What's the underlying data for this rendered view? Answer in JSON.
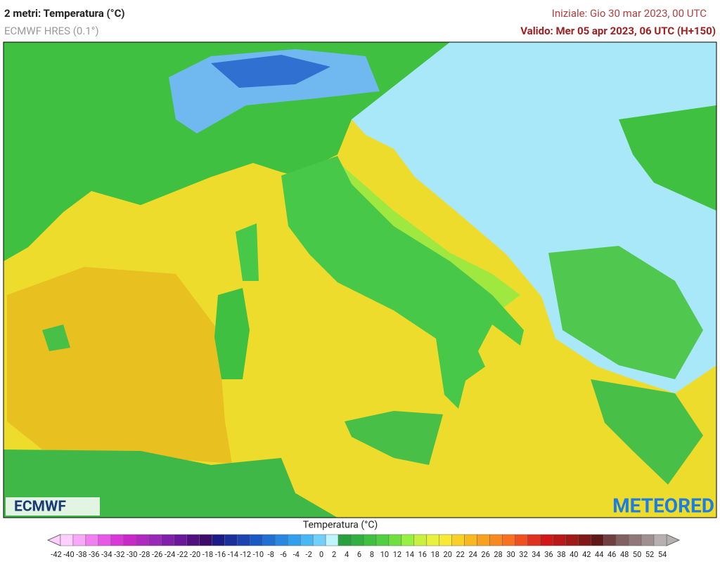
{
  "header": {
    "title": "2 metri: Temperatura (°C)",
    "model": "ECMWF HRES (0.1°)",
    "initial": "Iniziale: Gio 30 mar 2023, 00 UTC",
    "valid": "Valido: Mer 05 apr 2023, 06 UTC (H+150)"
  },
  "logos": {
    "left": "ECMWF",
    "right": "METEORED"
  },
  "colorbar": {
    "title": "Temperatura (°C)",
    "ticks": [
      -42,
      -40,
      -38,
      -36,
      -34,
      -32,
      -30,
      -28,
      -26,
      -24,
      -22,
      -20,
      -18,
      -16,
      -14,
      -12,
      -10,
      -8,
      -6,
      -4,
      -2,
      0,
      2,
      4,
      6,
      8,
      10,
      12,
      14,
      16,
      18,
      20,
      22,
      24,
      26,
      28,
      30,
      32,
      34,
      36,
      38,
      40,
      42,
      44,
      46,
      48,
      50,
      52,
      54
    ],
    "colors": [
      "#ffd0ff",
      "#f8a8f8",
      "#f080f0",
      "#e858e8",
      "#d838d8",
      "#c828c8",
      "#b028c0",
      "#9828b8",
      "#8020a8",
      "#681898",
      "#501080",
      "#3c0c68",
      "#1c1c88",
      "#1c309c",
      "#1c44b0",
      "#1c58c4",
      "#2070d4",
      "#2888e0",
      "#30a0ec",
      "#48b8f4",
      "#70d0fa",
      "#c0f4ff",
      "#28a040",
      "#30b040",
      "#40c040",
      "#50d040",
      "#70e040",
      "#98f040",
      "#c8f040",
      "#e8f040",
      "#f8e838",
      "#f8d028",
      "#f8b820",
      "#f8a020",
      "#f88820",
      "#f87020",
      "#f05020",
      "#e03020",
      "#d01818",
      "#b81818",
      "#a01818",
      "#801818",
      "#601818",
      "#704040",
      "#806060",
      "#907878",
      "#a09090",
      "#b8b0b0"
    ]
  }
}
